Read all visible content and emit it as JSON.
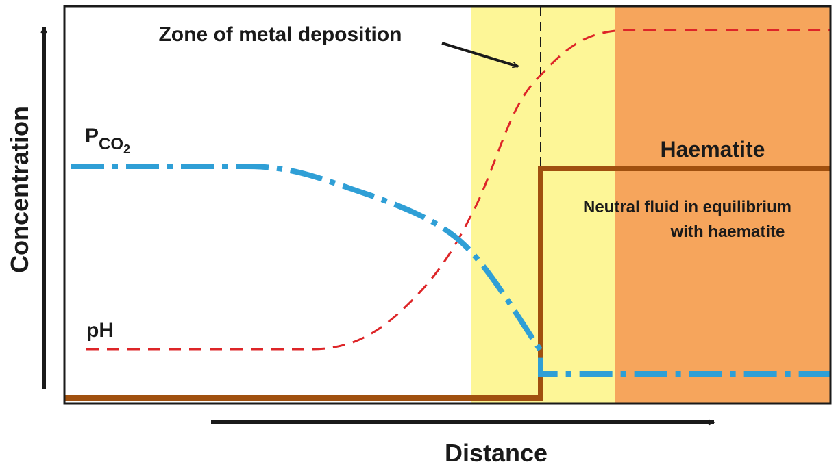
{
  "labels": {
    "y_axis": "Concentration",
    "x_axis": "Distance",
    "pco2_main": "P",
    "pco2_sub": "CO",
    "pco2_subsub": "2",
    "ph": "pH",
    "zone": "Zone of metal deposition",
    "haematite": "Haematite",
    "fluid_line1": "Neutral fluid in equilibrium",
    "fluid_line2": "with haematite"
  },
  "colors": {
    "zone_fill": "#fdf697",
    "haematite_fill": "#f6a55c",
    "pco2_curve": "#2f9fd6",
    "ph_curve": "#dd2528",
    "haematite_boundary": "#a0500f",
    "axis": "#1a1a1a"
  }
}
